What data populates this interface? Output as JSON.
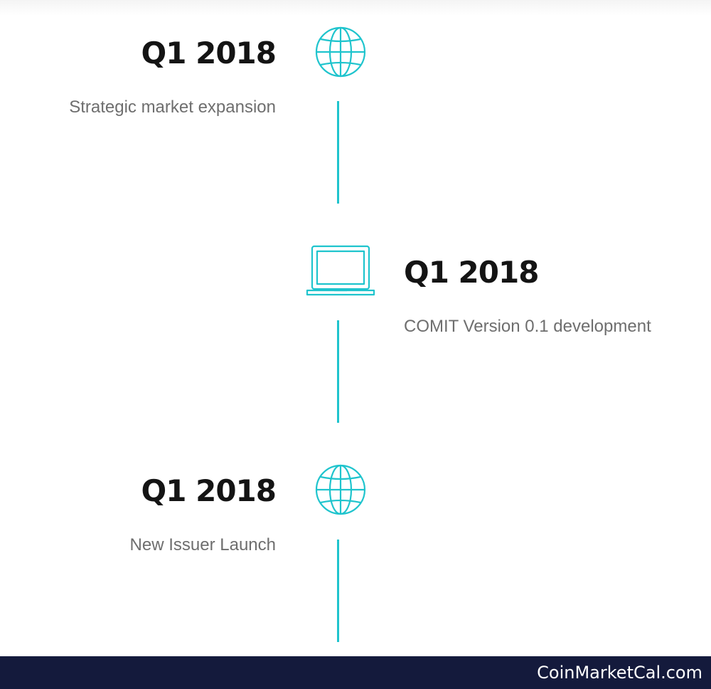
{
  "timeline": [
    {
      "date": "Q1 2018",
      "description": "Strategic market expansion",
      "icon": "globe-icon",
      "side": "left"
    },
    {
      "date": "Q1 2018",
      "description": "COMIT Version 0.1 development",
      "icon": "laptop-icon",
      "side": "right"
    },
    {
      "date": "Q1 2018",
      "description": "New Issuer Launch",
      "icon": "globe-icon",
      "side": "left"
    }
  ],
  "footer": {
    "brand": "CoinMarketCal.com"
  },
  "colors": {
    "accent": "#1fc4cd",
    "heading": "#141414",
    "text": "#6e6e6e",
    "footer_bg": "#141a3c",
    "footer_text": "#ffffff"
  }
}
